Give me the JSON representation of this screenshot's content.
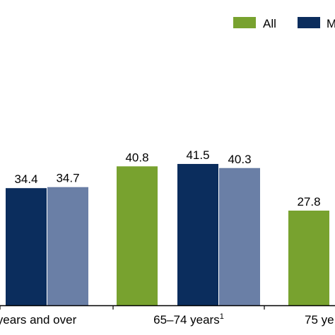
{
  "chart_data": {
    "type": "bar",
    "categories": [
      "years and over",
      "65–74 years",
      "75 ye"
    ],
    "category_superscripts": [
      "",
      "1",
      ""
    ],
    "series": [
      {
        "name": "All",
        "color": "#78a22f",
        "values": [
          null,
          40.8,
          27.8
        ]
      },
      {
        "name": "M",
        "color": "#0b2d5d",
        "values": [
          34.4,
          41.5,
          null
        ]
      },
      {
        "name": "",
        "color": "#6a7fa6",
        "values": [
          34.7,
          40.3,
          null
        ]
      }
    ],
    "data_labels": [
      [
        null,
        "40.8",
        "27.8"
      ],
      [
        "34.4",
        "41.5",
        null
      ],
      [
        "34.7",
        "40.3",
        null
      ]
    ],
    "ylim": [
      0,
      60
    ],
    "legend_position": "top-right",
    "grid": false,
    "title": "",
    "xlabel": "",
    "ylabel": ""
  }
}
